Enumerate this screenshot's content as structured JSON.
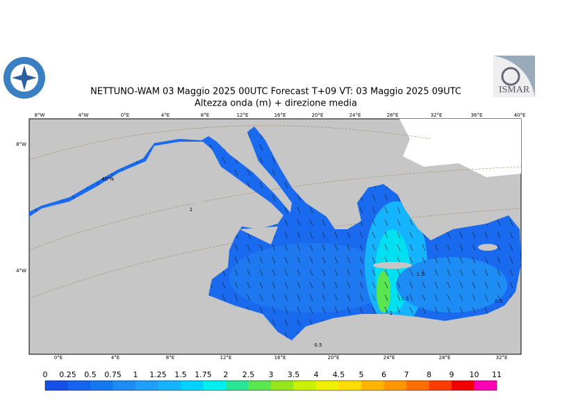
{
  "header": {
    "title": "NETTUNO-WAM  03   Maggio  2025 00UTC Forecast T+09 VT: 03   Maggio  2025 09UTC",
    "subtitle": "Altezza onda (m) + direzione media"
  },
  "logo_text": "ISMAR",
  "graticule": {
    "top": [
      "8°W",
      "4°W",
      "0°E",
      "4°E",
      "8°E",
      "12°E",
      "16°E",
      "20°E",
      "24°E",
      "28°E",
      "32°E",
      "36°E",
      "40°E"
    ],
    "bottom": [
      "0°E",
      "4°E",
      "8°E",
      "12°E",
      "16°E",
      "20°E",
      "24°E",
      "28°E",
      "32°E"
    ],
    "left": [
      "8°W",
      "4°W"
    ],
    "inner": [
      "40°N"
    ]
  },
  "contour_labels": [
    "1",
    "0.5",
    "1.5",
    "1.5",
    "2",
    "0.5"
  ],
  "colorbar": {
    "labels": [
      "0",
      "0.25",
      "0.5",
      "0.75",
      "1",
      "1.25",
      "1.5",
      "1.75",
      "2",
      "2.5",
      "3",
      "3.5",
      "4",
      "4.5",
      "5",
      "6",
      "7",
      "8",
      "9",
      "10",
      "11"
    ],
    "colors": [
      "#1450e6",
      "#1464f0",
      "#1478f0",
      "#1e8cf5",
      "#1ea0fa",
      "#14b4ff",
      "#00d2ff",
      "#00f0f0",
      "#28e696",
      "#5ae650",
      "#96e61e",
      "#c8f000",
      "#f0f000",
      "#ffdc00",
      "#ffb400",
      "#ff9600",
      "#ff6e00",
      "#ff3c00",
      "#f00000",
      "#ff00b4"
    ]
  }
}
